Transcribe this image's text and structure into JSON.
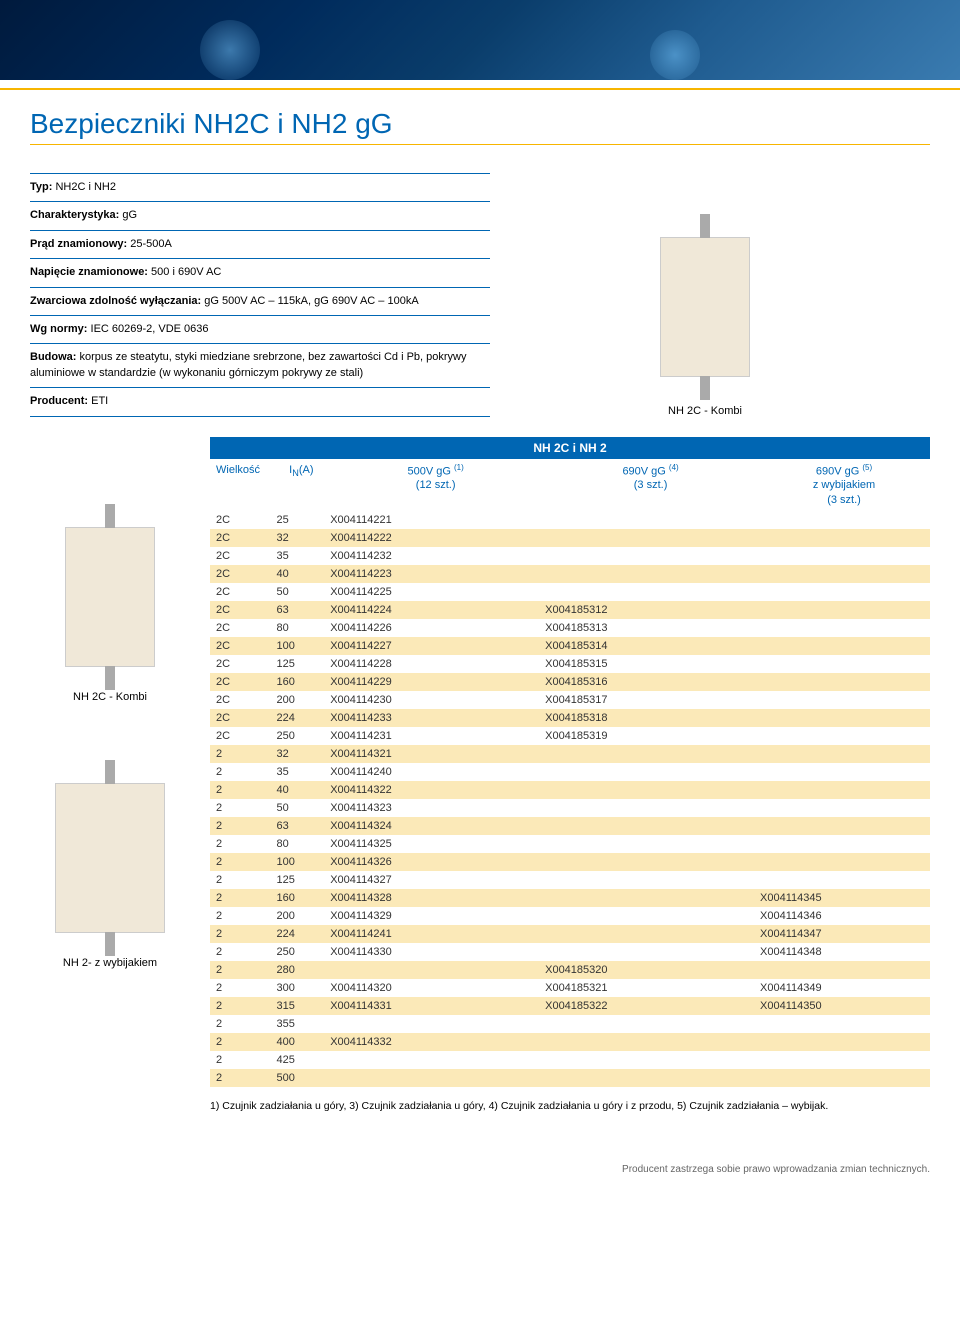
{
  "page_title": "Bezpieczniki NH2C i NH2 gG",
  "specs": [
    {
      "label": "Typ:",
      "value": "NH2C i NH2"
    },
    {
      "label": "Charakterystyka:",
      "value": "gG"
    },
    {
      "label": "Prąd znamionowy:",
      "value": "25-500A"
    },
    {
      "label": "Napięcie znamionowe:",
      "value": "500 i 690V AC"
    },
    {
      "label": "Zwarciowa zdolność wyłączania:",
      "value": "gG 500V AC – 115kA, gG 690V AC – 100kA"
    },
    {
      "label": "Wg normy:",
      "value": "IEC 60269-2, VDE 0636"
    },
    {
      "label": "Budowa:",
      "value": "korpus ze steatytu, styki miedziane srebrzone, bez zawartości Cd i Pb, pokrywy aluminiowe w standardzie (w wykonaniu górniczym pokrywy ze stali)"
    },
    {
      "label": "Producent:",
      "value": "ETI"
    }
  ],
  "top_caption": "NH 2C - Kombi",
  "left_caption_1": "NH 2C - Kombi",
  "left_caption_2": "NH 2- z wybijakiem",
  "table": {
    "title": "NH 2C i NH 2",
    "headers": {
      "col1": "Wielkość",
      "col2": "I",
      "col2_sub": "N",
      "col2_unit": "(A)",
      "col3_a": "500V gG",
      "col3_sup": "(1)",
      "col3_b": "(12 szt.)",
      "col4_a": "690V gG",
      "col4_sup": "(4)",
      "col4_b": "(3 szt.)",
      "col5_a": "690V gG",
      "col5_sup": "(5)",
      "col5_b": "z wybijakiem",
      "col5_c": "(3 szt.)"
    },
    "rows": [
      [
        "2C",
        "25",
        "X004114221",
        "",
        ""
      ],
      [
        "2C",
        "32",
        "X004114222",
        "",
        ""
      ],
      [
        "2C",
        "35",
        "X004114232",
        "",
        ""
      ],
      [
        "2C",
        "40",
        "X004114223",
        "",
        ""
      ],
      [
        "2C",
        "50",
        "X004114225",
        "",
        ""
      ],
      [
        "2C",
        "63",
        "X004114224",
        "X004185312",
        ""
      ],
      [
        "2C",
        "80",
        "X004114226",
        "X004185313",
        ""
      ],
      [
        "2C",
        "100",
        "X004114227",
        "X004185314",
        ""
      ],
      [
        "2C",
        "125",
        "X004114228",
        "X004185315",
        ""
      ],
      [
        "2C",
        "160",
        "X004114229",
        "X004185316",
        ""
      ],
      [
        "2C",
        "200",
        "X004114230",
        "X004185317",
        ""
      ],
      [
        "2C",
        "224",
        "X004114233",
        "X004185318",
        ""
      ],
      [
        "2C",
        "250",
        "X004114231",
        "X004185319",
        ""
      ],
      [
        "2",
        "32",
        "X004114321",
        "",
        ""
      ],
      [
        "2",
        "35",
        "X004114240",
        "",
        ""
      ],
      [
        "2",
        "40",
        "X004114322",
        "",
        ""
      ],
      [
        "2",
        "50",
        "X004114323",
        "",
        ""
      ],
      [
        "2",
        "63",
        "X004114324",
        "",
        ""
      ],
      [
        "2",
        "80",
        "X004114325",
        "",
        ""
      ],
      [
        "2",
        "100",
        "X004114326",
        "",
        ""
      ],
      [
        "2",
        "125",
        "X004114327",
        "",
        ""
      ],
      [
        "2",
        "160",
        "X004114328",
        "",
        "X004114345"
      ],
      [
        "2",
        "200",
        "X004114329",
        "",
        "X004114346"
      ],
      [
        "2",
        "224",
        "X004114241",
        "",
        "X004114347"
      ],
      [
        "2",
        "250",
        "X004114330",
        "",
        "X004114348"
      ],
      [
        "2",
        "280",
        "",
        "X004185320",
        ""
      ],
      [
        "2",
        "300",
        "X004114320",
        "X004185321",
        "X004114349"
      ],
      [
        "2",
        "315",
        "X004114331",
        "X004185322",
        "X004114350"
      ],
      [
        "2",
        "355",
        "",
        "",
        ""
      ],
      [
        "2",
        "400",
        "X004114332",
        "",
        ""
      ],
      [
        "2",
        "425",
        "",
        "",
        ""
      ],
      [
        "2",
        "500",
        "",
        "",
        ""
      ]
    ]
  },
  "footnote": "1) Czujnik zadziałania u góry, 3) Czujnik zadziałania u góry, 4) Czujnik zadziałania u góry i z przodu, 5) Czujnik zadziałania – wybijak.",
  "bottom_note": "Producent zastrzega sobie prawo wprowadzania zmian technicznych.",
  "colors": {
    "primary_blue": "#0066b3",
    "accent_yellow": "#f7b500",
    "row_highlight": "#fbe9b8"
  }
}
